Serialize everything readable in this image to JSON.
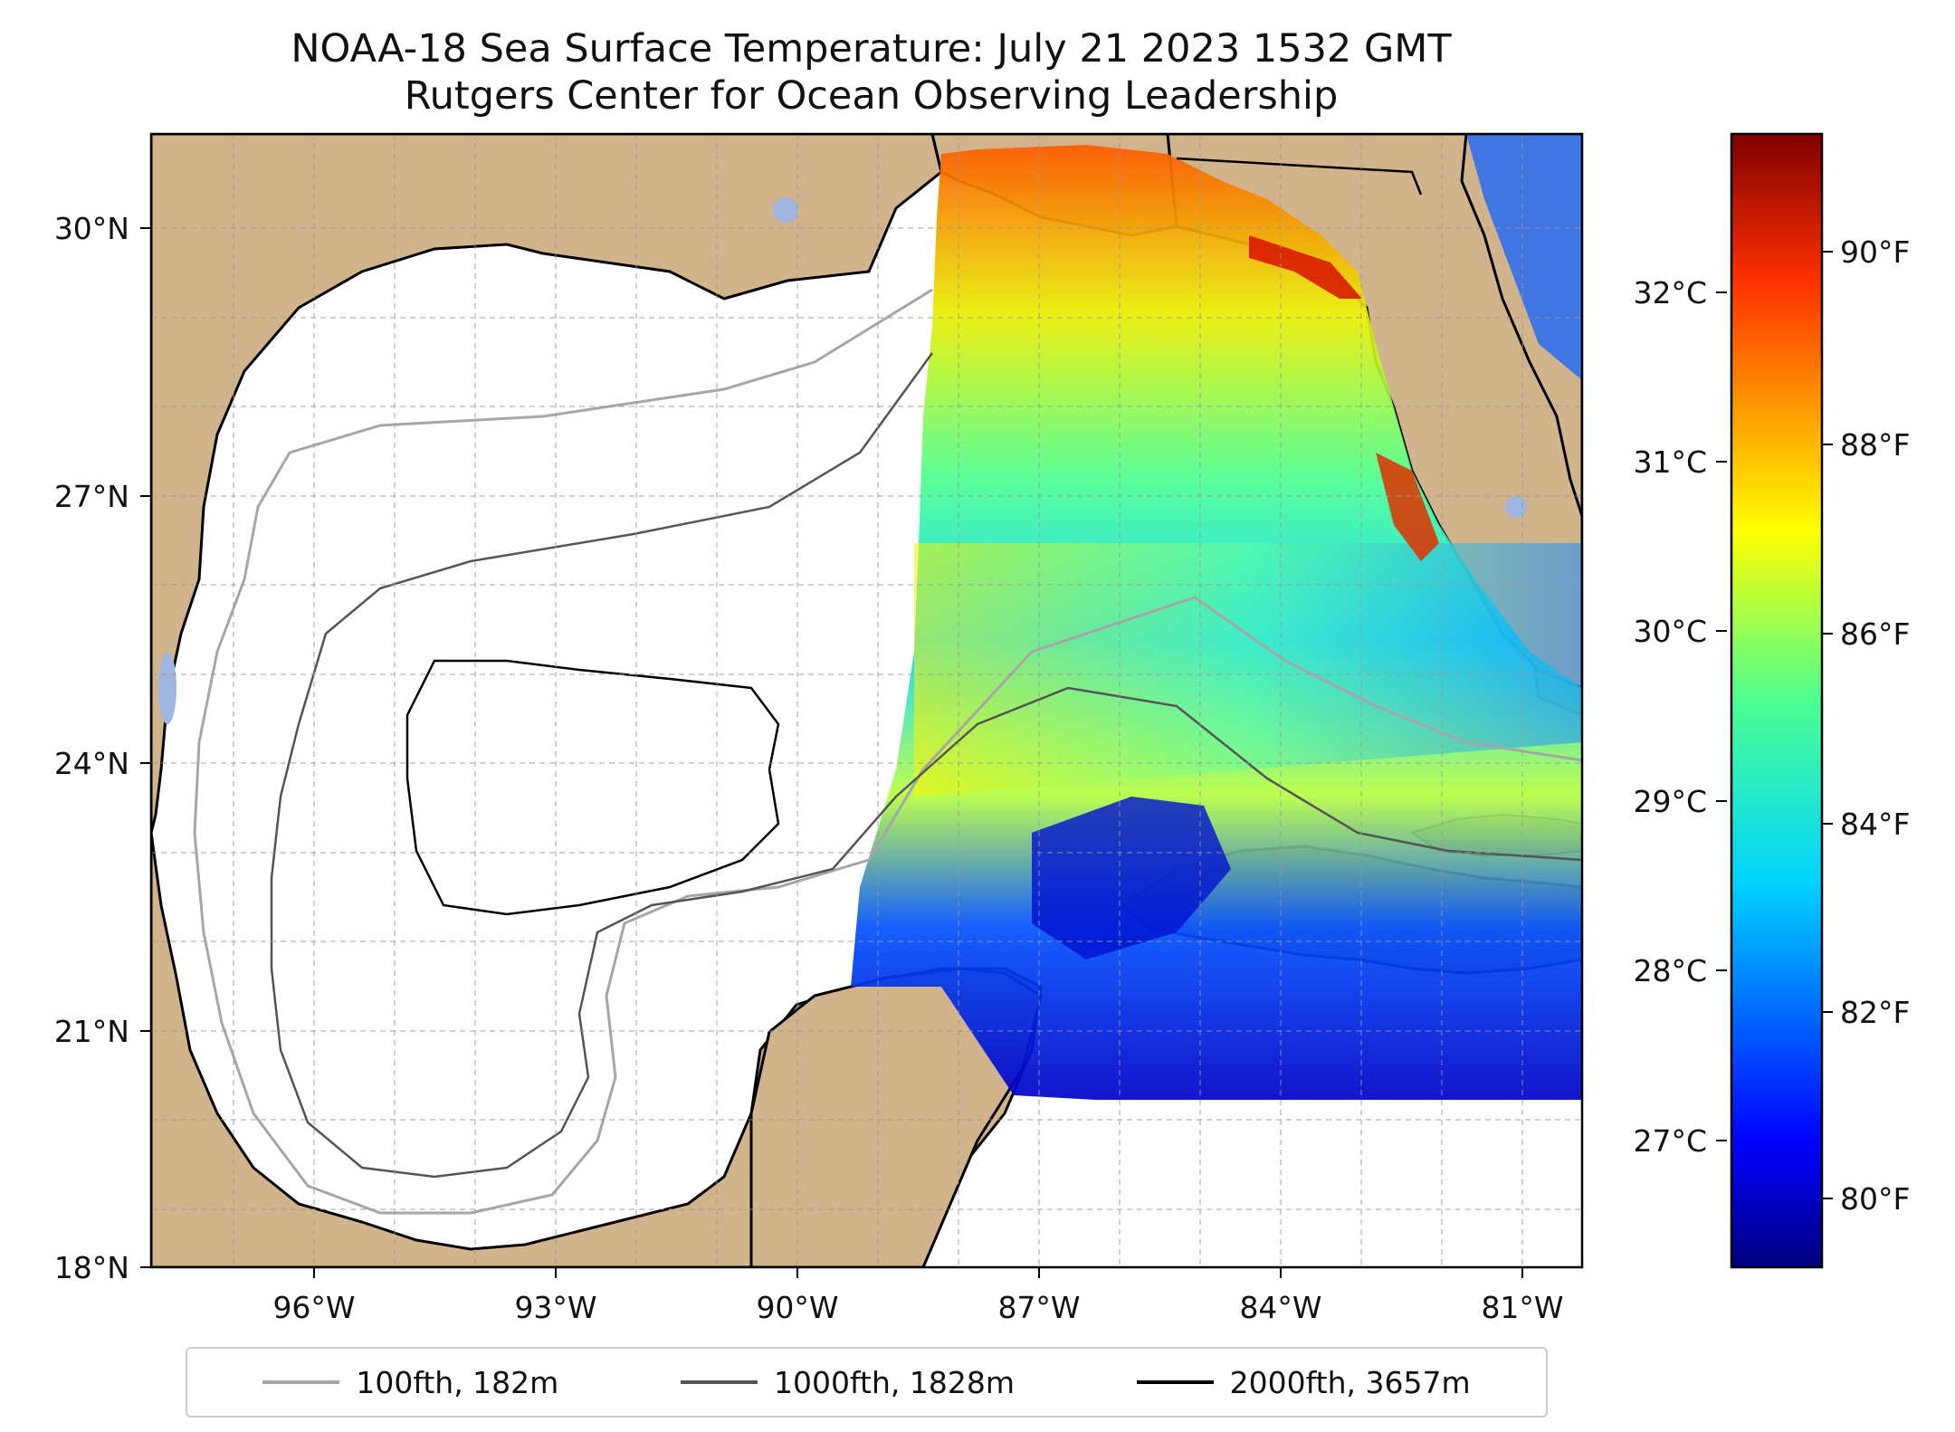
{
  "title": {
    "line1": "NOAA-18 Sea Surface Temperature: July 21 2023 1532 GMT",
    "line2": "Rutgers Center for Ocean Observing Leadership"
  },
  "map": {
    "lat_ticks": [
      "30°N",
      "27°N",
      "24°N",
      "21°N",
      "18°N"
    ],
    "lon_ticks": [
      "96°W",
      "93°W",
      "90°W",
      "87°W",
      "84°W",
      "81°W"
    ],
    "extent": {
      "lon": [
        -98.2,
        -80.5
      ],
      "lat": [
        18,
        30.7
      ]
    },
    "colors": {
      "land": "#d2b48c",
      "water_bodies": "#9eb6e0",
      "border": "#000000",
      "grid": "#999999"
    }
  },
  "colorbar": {
    "celsius_ticks": [
      "32°C",
      "31°C",
      "30°C",
      "29°C",
      "28°C",
      "27°C"
    ],
    "fahrenheit_ticks": [
      "90°F",
      "88°F",
      "86°F",
      "84°F",
      "82°F",
      "80°F"
    ],
    "range_f": [
      79.2,
      91.3
    ],
    "colormap": "jet"
  },
  "legend": {
    "items": [
      {
        "label": "100fth, 182m",
        "color": "#a6a6a6"
      },
      {
        "label": "1000fth, 1828m",
        "color": "#555555"
      },
      {
        "label": "2000fth, 3657m",
        "color": "#000000"
      }
    ]
  }
}
